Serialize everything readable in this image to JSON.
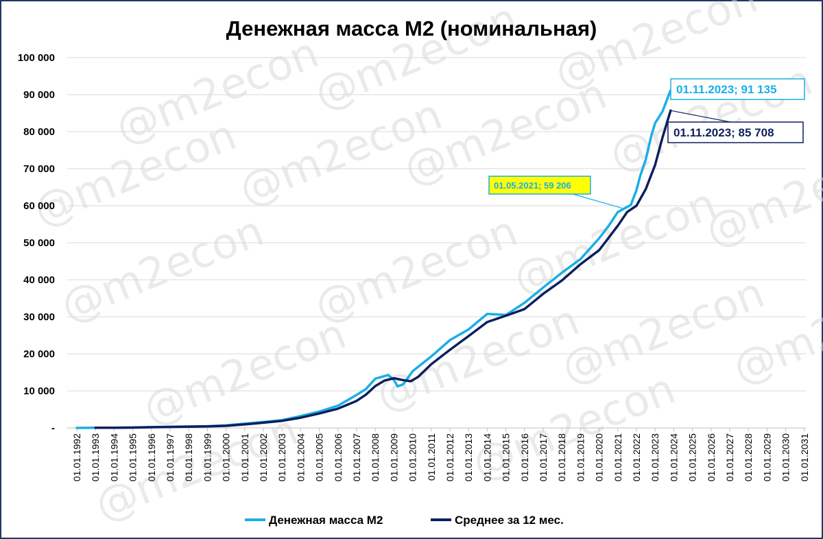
{
  "chart_data": {
    "type": "line",
    "title": "Денежная масса М2 (номинальная)",
    "watermark": "@m2econ",
    "xlabel": "",
    "ylabel": "",
    "ylim": [
      0,
      100000
    ],
    "y_ticks": [
      0,
      10000,
      20000,
      30000,
      40000,
      50000,
      60000,
      70000,
      80000,
      90000,
      100000
    ],
    "y_tick_labels": [
      "-",
      "10 000",
      "20 000",
      "30 000",
      "40 000",
      "50 000",
      "60 000",
      "70 000",
      "80 000",
      "90 000",
      "100 000"
    ],
    "x_tick_labels": [
      "01.01.1992",
      "01.01.1993",
      "01.01.1994",
      "01.01.1995",
      "01.01.1996",
      "01.01.1997",
      "01.01.1998",
      "01.01.1999",
      "01.01.2000",
      "01.01.2001",
      "01.01.2002",
      "01.01.2003",
      "01.01.2004",
      "01.01.2005",
      "01.01.2006",
      "01.01.2007",
      "01.01.2008",
      "01.01.2009",
      "01.01.2010",
      "01.01.2011",
      "01.01.2012",
      "01.01.2013",
      "01.01.2014",
      "01.01.2015",
      "01.01.2016",
      "01.01.2017",
      "01.01.2018",
      "01.01.2019",
      "01.01.2020",
      "01.01.2021",
      "01.01.2022",
      "01.01.2023",
      "01.01.2024",
      "01.01.2025",
      "01.01.2026",
      "01.01.2027",
      "01.01.2028",
      "01.01.2029",
      "01.01.2030",
      "01.01.2031"
    ],
    "grid": true,
    "legend_position": "bottom",
    "series": [
      {
        "name": "Денежная масса М2",
        "color": "#1aaee8",
        "points": [
          [
            "1992.00",
            0
          ],
          [
            "1993.00",
            30
          ],
          [
            "1994.00",
            60
          ],
          [
            "1995.00",
            100
          ],
          [
            "1996.00",
            220
          ],
          [
            "1997.00",
            290
          ],
          [
            "1998.00",
            380
          ],
          [
            "1999.00",
            440
          ],
          [
            "2000.00",
            700
          ],
          [
            "2001.00",
            1150
          ],
          [
            "2002.00",
            1600
          ],
          [
            "2003.00",
            2100
          ],
          [
            "2004.00",
            3200
          ],
          [
            "2005.00",
            4400
          ],
          [
            "2006.00",
            6000
          ],
          [
            "2007.00",
            8900
          ],
          [
            "2007.50",
            10500
          ],
          [
            "2008.00",
            13300
          ],
          [
            "2008.70",
            14300
          ],
          [
            "2009.00",
            12900
          ],
          [
            "2009.20",
            11200
          ],
          [
            "2009.50",
            11800
          ],
          [
            "2010.00",
            15300
          ],
          [
            "2011.00",
            19300
          ],
          [
            "2012.00",
            23700
          ],
          [
            "2013.00",
            26600
          ],
          [
            "2014.00",
            30800
          ],
          [
            "2015.00",
            30500
          ],
          [
            "2016.00",
            33800
          ],
          [
            "2017.00",
            37900
          ],
          [
            "2018.00",
            41900
          ],
          [
            "2019.00",
            45600
          ],
          [
            "2020.00",
            51200
          ],
          [
            "2020.50",
            54500
          ],
          [
            "2021.00",
            58300
          ],
          [
            "2021.33",
            59206
          ],
          [
            "2021.70",
            60200
          ],
          [
            "2022.00",
            64200
          ],
          [
            "2022.20",
            68000
          ],
          [
            "2022.50",
            72500
          ],
          [
            "2022.80",
            79000
          ],
          [
            "2023.00",
            82300
          ],
          [
            "2023.40",
            85500
          ],
          [
            "2023.70",
            89500
          ],
          [
            "2023.83",
            91135
          ]
        ]
      },
      {
        "name": "Среднее за 12 мес.",
        "color": "#0d1f5c",
        "points": [
          [
            "1993.00",
            30
          ],
          [
            "1994.00",
            50
          ],
          [
            "1995.00",
            90
          ],
          [
            "1996.00",
            180
          ],
          [
            "1997.00",
            260
          ],
          [
            "1998.00",
            340
          ],
          [
            "1999.00",
            420
          ],
          [
            "2000.00",
            560
          ],
          [
            "2001.00",
            950
          ],
          [
            "2002.00",
            1400
          ],
          [
            "2003.00",
            1900
          ],
          [
            "2004.00",
            2750
          ],
          [
            "2005.00",
            3900
          ],
          [
            "2006.00",
            5200
          ],
          [
            "2007.00",
            7300
          ],
          [
            "2007.50",
            9000
          ],
          [
            "2008.00",
            11300
          ],
          [
            "2008.50",
            12800
          ],
          [
            "2009.00",
            13400
          ],
          [
            "2009.50",
            12900
          ],
          [
            "2009.90",
            12600
          ],
          [
            "2010.30",
            13800
          ],
          [
            "2011.00",
            17200
          ],
          [
            "2012.00",
            21100
          ],
          [
            "2013.00",
            24800
          ],
          [
            "2014.00",
            28600
          ],
          [
            "2015.00",
            30300
          ],
          [
            "2016.00",
            32100
          ],
          [
            "2017.00",
            36200
          ],
          [
            "2018.00",
            39800
          ],
          [
            "2019.00",
            44200
          ],
          [
            "2020.00",
            48000
          ],
          [
            "2021.00",
            54600
          ],
          [
            "2021.50",
            58300
          ],
          [
            "2022.00",
            60000
          ],
          [
            "2022.50",
            64500
          ],
          [
            "2023.00",
            71000
          ],
          [
            "2023.40",
            78500
          ],
          [
            "2023.83",
            85708
          ]
        ]
      }
    ],
    "annotations": [
      {
        "series": 0,
        "x": "2023.83",
        "label": "01.11.2023;  91 135",
        "box_fill": "#ffffff",
        "box_border": "#1aaee8",
        "text_color": "#1aaee8"
      },
      {
        "series": 1,
        "x": "2023.83",
        "label": "01.11.2023;  85 708",
        "box_fill": "#ffffff",
        "box_border": "#0d1f5c",
        "text_color": "#0d1f5c"
      },
      {
        "series": 0,
        "x": "2021.33",
        "label": "01.05.2021; 59 206",
        "box_fill": "#ffff00",
        "box_border": "#1aaee8",
        "text_color": "#1aaee8"
      }
    ]
  }
}
